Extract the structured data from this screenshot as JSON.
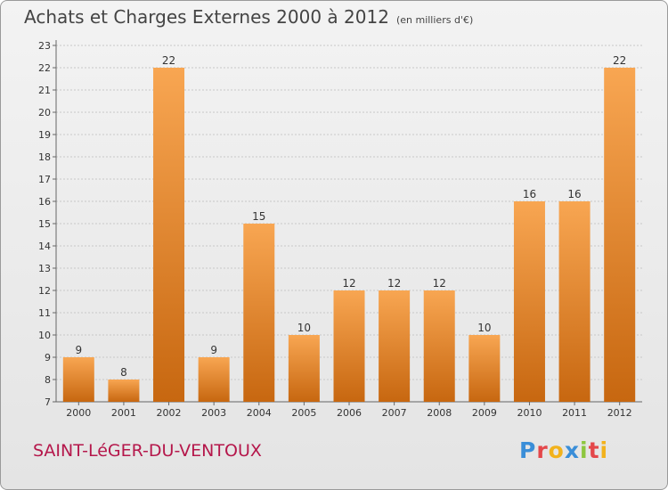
{
  "header": {
    "title": "Achats et Charges Externes 2000 à 2012",
    "subtitle": "(en milliers d'€)"
  },
  "footer": {
    "commune": "SAINT-LéGER-DU-VENTOUX",
    "logo_letters": [
      "P",
      "r",
      "o",
      "x",
      "i",
      "t",
      "i"
    ],
    "logo_colors": [
      "#3a8ed8",
      "#e4474a",
      "#f2b21c",
      "#3a8ed8",
      "#8dc63f",
      "#e4474a",
      "#f2b21c"
    ]
  },
  "colors": {
    "bar_light": "#f8a652",
    "bar_dark": "#c76710",
    "grid": "#c8c8c8"
  },
  "chart_data": {
    "type": "bar",
    "title": "Achats et Charges Externes 2000 à 2012",
    "subtitle": "(en milliers d'€)",
    "categories": [
      "2000",
      "2001",
      "2002",
      "2003",
      "2004",
      "2005",
      "2006",
      "2007",
      "2008",
      "2009",
      "2010",
      "2011",
      "2012"
    ],
    "values": [
      9,
      8,
      22,
      9,
      15,
      10,
      12,
      12,
      12,
      10,
      16,
      16,
      22
    ],
    "ylim": [
      7,
      23
    ],
    "yticks": [
      7,
      8,
      9,
      10,
      11,
      12,
      13,
      14,
      15,
      16,
      17,
      18,
      19,
      20,
      21,
      22,
      23
    ],
    "grid": true,
    "data_labels": true
  }
}
